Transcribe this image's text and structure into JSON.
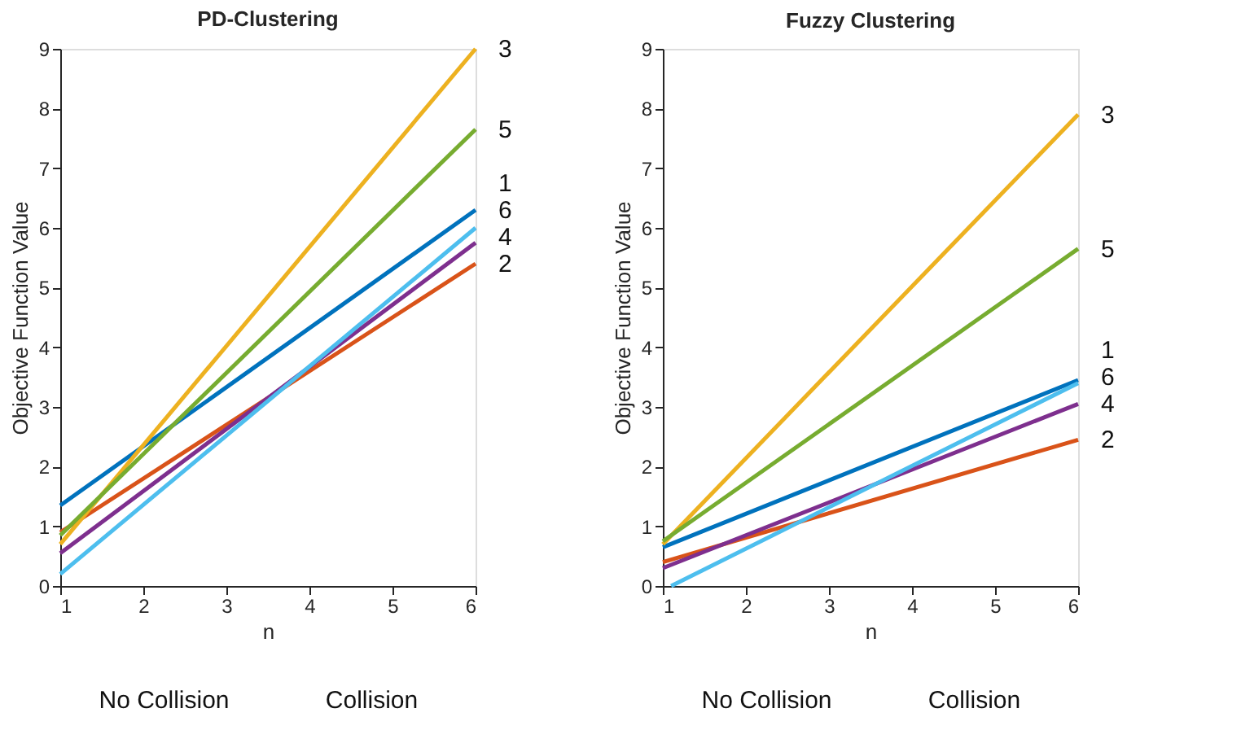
{
  "chart_data": [
    {
      "type": "line",
      "title": "PD-Clustering",
      "xlabel": "n",
      "ylabel": "Objective Function Value",
      "xlim": [
        1,
        6
      ],
      "ylim": [
        0,
        9
      ],
      "xticks": [
        1,
        2,
        3,
        4,
        5,
        6
      ],
      "yticks": [
        0,
        1,
        2,
        3,
        4,
        5,
        6,
        7,
        8,
        9
      ],
      "grid": false,
      "legend": false,
      "marker": "none",
      "line_style": "solid",
      "series": [
        {
          "name": "1",
          "color": "#0072bd",
          "x": [
            1,
            6
          ],
          "values": [
            1.35,
            6.3
          ]
        },
        {
          "name": "2",
          "color": "#d95319",
          "x": [
            1,
            6
          ],
          "values": [
            0.9,
            5.4
          ]
        },
        {
          "name": "3",
          "color": "#edb120",
          "x": [
            1,
            6
          ],
          "values": [
            0.7,
            9.0
          ]
        },
        {
          "name": "4",
          "color": "#7e2f8e",
          "x": [
            1,
            6
          ],
          "values": [
            0.55,
            5.75
          ]
        },
        {
          "name": "5",
          "color": "#77ac30",
          "x": [
            1,
            6
          ],
          "values": [
            0.85,
            7.65
          ]
        },
        {
          "name": "6",
          "color": "#4dbeee",
          "x": [
            1,
            6
          ],
          "values": [
            0.2,
            6.0
          ]
        }
      ],
      "annotations": [
        "No Collision",
        "Collision"
      ]
    },
    {
      "type": "line",
      "title": "Fuzzy Clustering",
      "xlabel": "n",
      "ylabel": "Objective Function Value",
      "xlim": [
        1,
        6
      ],
      "ylim": [
        0,
        9
      ],
      "xticks": [
        1,
        2,
        3,
        4,
        5,
        6
      ],
      "yticks": [
        0,
        1,
        2,
        3,
        4,
        5,
        6,
        7,
        8,
        9
      ],
      "grid": false,
      "legend": false,
      "marker": "none",
      "line_style": "solid",
      "series": [
        {
          "name": "1",
          "color": "#0072bd",
          "x": [
            1,
            6
          ],
          "values": [
            0.65,
            3.45
          ]
        },
        {
          "name": "2",
          "color": "#d95319",
          "x": [
            1,
            6
          ],
          "values": [
            0.4,
            2.45
          ]
        },
        {
          "name": "3",
          "color": "#edb120",
          "x": [
            1,
            6
          ],
          "values": [
            0.7,
            7.9
          ]
        },
        {
          "name": "4",
          "color": "#7e2f8e",
          "x": [
            1,
            6
          ],
          "values": [
            0.3,
            3.05
          ]
        },
        {
          "name": "5",
          "color": "#77ac30",
          "x": [
            1,
            6
          ],
          "values": [
            0.75,
            5.65
          ]
        },
        {
          "name": "6",
          "color": "#4dbeee",
          "x": [
            1.1,
            6
          ],
          "values": [
            0,
            3.4
          ]
        }
      ],
      "annotations": [
        "No Collision",
        "Collision"
      ]
    }
  ]
}
